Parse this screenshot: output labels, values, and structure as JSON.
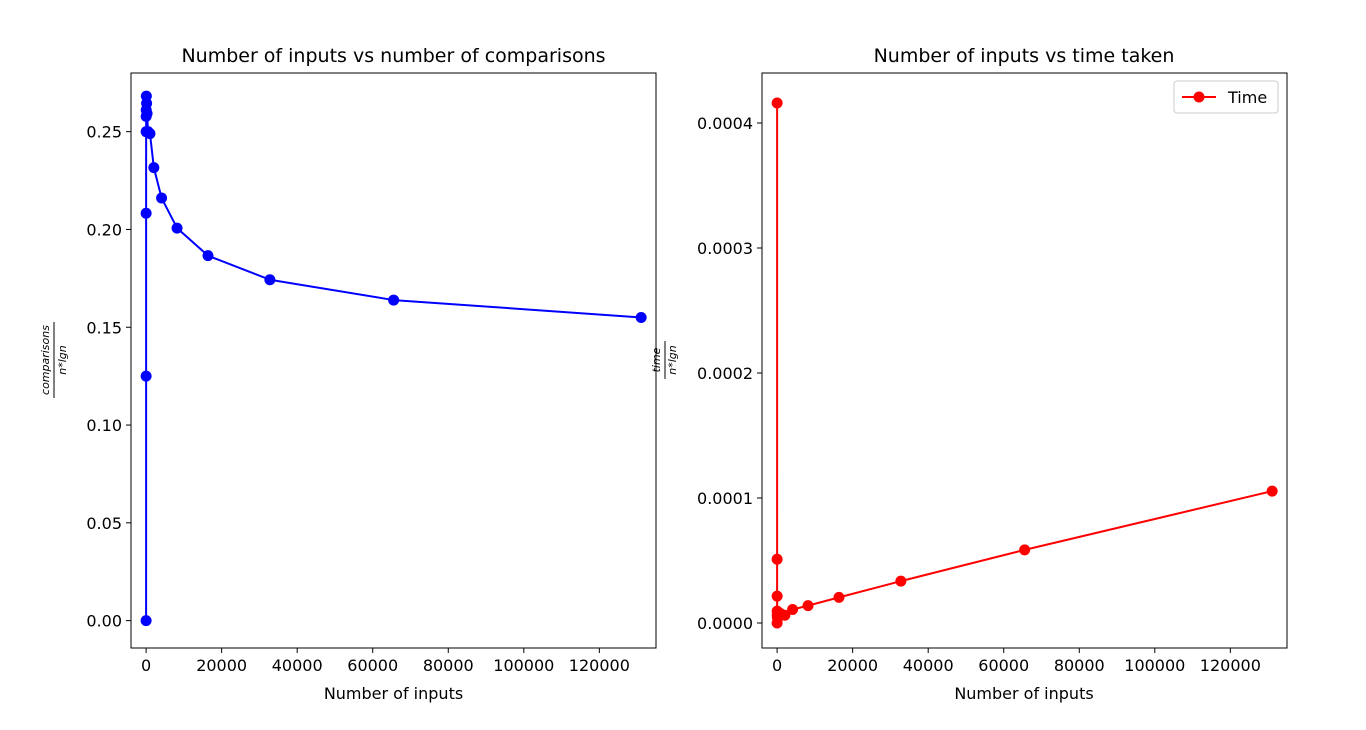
{
  "chart_data": [
    {
      "type": "line",
      "title": "Number of inputs vs number of comparisons",
      "xlabel": "Number of inputs",
      "ylabel_num": "comparisons",
      "ylabel_den": "n*lgn",
      "xlim": [
        -4000,
        135000
      ],
      "ylim": [
        -0.014,
        0.28
      ],
      "xticks": [
        0,
        20000,
        40000,
        60000,
        80000,
        100000,
        120000
      ],
      "yticks": [
        0.0,
        0.05,
        0.1,
        0.15,
        0.2,
        0.25
      ],
      "ytick_decimals": 2,
      "color": "#0000ff",
      "grid": false,
      "legend": null,
      "series": [
        {
          "x": [
            1,
            2,
            4,
            8,
            16,
            32,
            64,
            128,
            256,
            512,
            1024,
            2048,
            4096,
            8192,
            16384,
            32768,
            65536,
            131072
          ],
          "y": [
            0.0,
            0.125,
            0.2083,
            0.25,
            0.2578,
            0.2611,
            0.2682,
            0.2645,
            0.2593,
            0.25,
            0.249,
            0.2316,
            0.2161,
            0.2007,
            0.1866,
            0.1743,
            0.1639,
            0.155
          ]
        }
      ]
    },
    {
      "type": "line",
      "title": "Number of inputs vs time taken",
      "xlabel": "Number of inputs",
      "ylabel_num": "time",
      "ylabel_den": "n*lgn",
      "xlim": [
        -4000,
        135000
      ],
      "ylim": [
        -2e-05,
        0.00044
      ],
      "xticks": [
        0,
        20000,
        40000,
        60000,
        80000,
        100000,
        120000
      ],
      "yticks": [
        0.0,
        0.0001,
        0.0002,
        0.0003,
        0.0004
      ],
      "ytick_decimals": 4,
      "color": "#ff0000",
      "grid": false,
      "legend": "top-right",
      "series": [
        {
          "name": "Time",
          "x": [
            1,
            2,
            4,
            8,
            16,
            32,
            64,
            128,
            256,
            512,
            1024,
            2048,
            4096,
            8192,
            16384,
            32768,
            65536,
            131072
          ],
          "y": [
            0.0,
            0.000416,
            5.1e-05,
            2.15e-05,
            9.5e-06,
            6.5e-06,
            4.8e-06,
            3.9e-06,
            6e-06,
            8.2e-06,
            7.2e-06,
            6.2e-06,
            1.08e-05,
            1.39e-05,
            2.05e-05,
            3.35e-05,
            5.85e-05,
            0.0001055
          ]
        }
      ]
    }
  ]
}
